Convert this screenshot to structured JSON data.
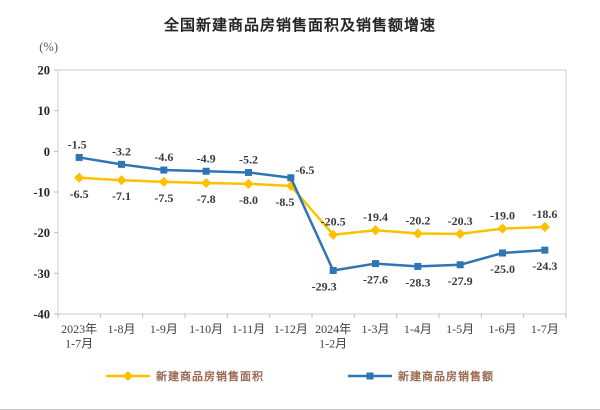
{
  "chart_data": {
    "type": "line",
    "title": "全国新建商品房销售面积及销售额增速",
    "unit_label": "(%)",
    "categories": [
      "2023年\n1-7月",
      "1-8月",
      "1-9月",
      "1-10月",
      "1-11月",
      "1-12月",
      "2024年\n1-2月",
      "1-3月",
      "1-4月",
      "1-5月",
      "1-6月",
      "1-7月"
    ],
    "ylim": [
      -40,
      20
    ],
    "ytick_step": 10,
    "yticks": [
      "20",
      "10",
      "0",
      "-10",
      "-20",
      "-30",
      "-40"
    ],
    "grid": false,
    "legend_position": "bottom",
    "series": [
      {
        "name": "新建商品房销售面积",
        "color": "#FFC000",
        "marker": "diamond",
        "values": [
          -6.5,
          -7.1,
          -7.5,
          -7.8,
          -8.0,
          -8.5,
          -20.5,
          -19.4,
          -20.2,
          -20.3,
          -19.0,
          -18.6
        ],
        "label_side": [
          "below",
          "below",
          "below",
          "below",
          "below",
          "below",
          "above",
          "above",
          "above",
          "above",
          "above",
          "above"
        ],
        "label_dx": [
          0,
          0,
          0,
          0,
          0,
          -6,
          0,
          0,
          0,
          0,
          0,
          0
        ],
        "label_dy": [
          0,
          0,
          0,
          0,
          0,
          0,
          0,
          0,
          0,
          0,
          0,
          0
        ]
      },
      {
        "name": "新建商品房销售额",
        "color": "#2E75B6",
        "marker": "square",
        "values": [
          -1.5,
          -3.2,
          -4.6,
          -4.9,
          -5.2,
          -6.5,
          -29.3,
          -27.6,
          -28.3,
          -27.9,
          -25.0,
          -24.3
        ],
        "label_side": [
          "above",
          "above",
          "above",
          "above",
          "above",
          "above",
          "below",
          "below",
          "below",
          "below",
          "below",
          "below"
        ],
        "label_dx": [
          -2,
          0,
          0,
          0,
          0,
          14,
          -9,
          0,
          0,
          0,
          0,
          0
        ],
        "label_dy": [
          0,
          0,
          0,
          0,
          0,
          5,
          0,
          0,
          0,
          0,
          0,
          0
        ]
      }
    ],
    "colors": {
      "plot_border": "#c9cdd2",
      "tick_mark": "#b9bdc2",
      "ytick_label": "#262626",
      "xtick_label": "#404040",
      "data_label": "#3a3a3a",
      "unit_label": "#595959",
      "legend_text": "#9c6a52",
      "background": "#ffffff"
    }
  }
}
